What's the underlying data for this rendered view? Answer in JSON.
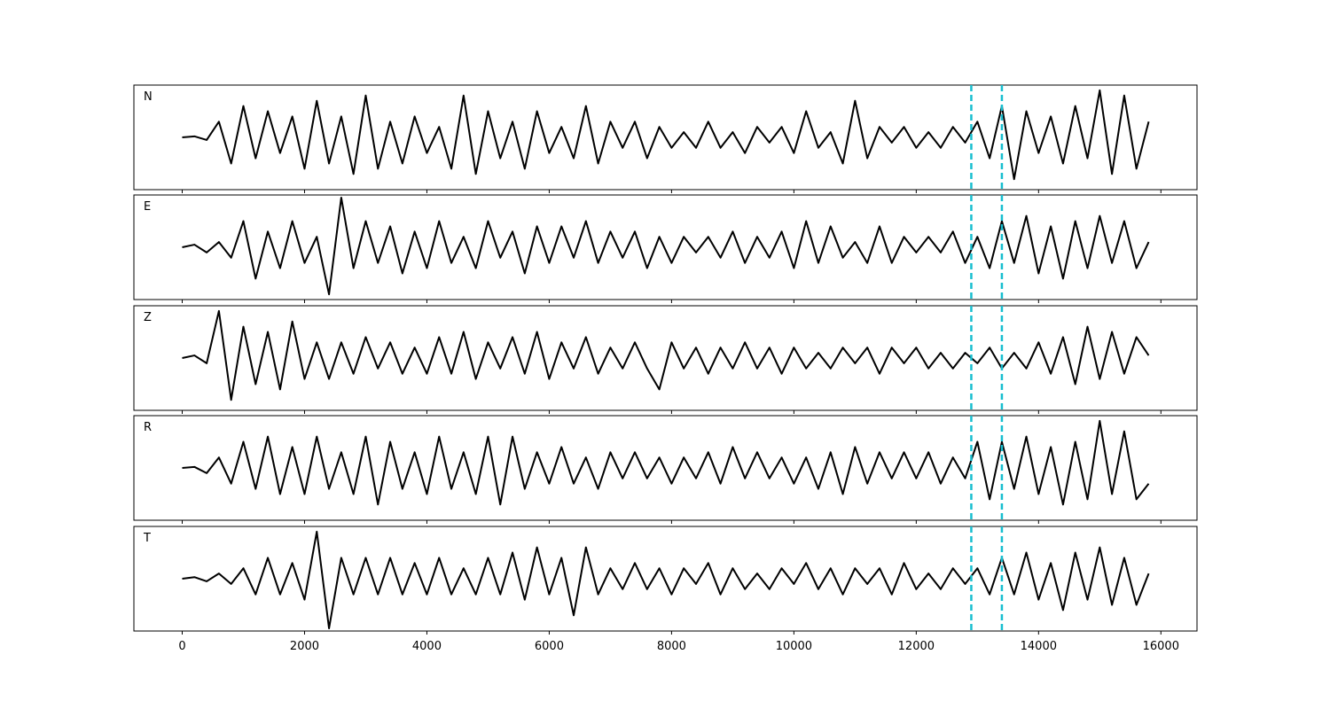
{
  "chart_data": {
    "type": "line",
    "x": [
      0,
      200,
      400,
      600,
      800,
      1000,
      1200,
      1400,
      1600,
      1800,
      2000,
      2200,
      2400,
      2600,
      2800,
      3000,
      3200,
      3400,
      3600,
      3800,
      4000,
      4200,
      4400,
      4600,
      4800,
      5000,
      5200,
      5400,
      5600,
      5800,
      6000,
      6200,
      6400,
      6600,
      6800,
      7000,
      7200,
      7400,
      7600,
      7800,
      8000,
      8200,
      8400,
      8600,
      8800,
      9000,
      9200,
      9400,
      9600,
      9800,
      10000,
      10200,
      10400,
      10600,
      10800,
      11000,
      11200,
      11400,
      11600,
      11800,
      12000,
      12200,
      12400,
      12600,
      12800,
      13000,
      13200,
      13400,
      13600,
      13800,
      14000,
      14200,
      14400,
      14600,
      14800,
      15000,
      15200,
      15400,
      15600,
      15800
    ],
    "series": [
      {
        "name": "N",
        "color": "#000000",
        "values": [
          0,
          0.02,
          -0.05,
          0.3,
          -0.5,
          0.6,
          -0.4,
          0.5,
          -0.3,
          0.4,
          -0.6,
          0.7,
          -0.5,
          0.4,
          -0.7,
          0.8,
          -0.6,
          0.3,
          -0.5,
          0.4,
          -0.3,
          0.2,
          -0.6,
          0.8,
          -0.7,
          0.5,
          -0.4,
          0.3,
          -0.6,
          0.5,
          -0.3,
          0.2,
          -0.4,
          0.6,
          -0.5,
          0.3,
          -0.2,
          0.3,
          -0.4,
          0.2,
          -0.2,
          0.1,
          -0.2,
          0.3,
          -0.2,
          0.1,
          -0.3,
          0.2,
          -0.1,
          0.2,
          -0.3,
          0.5,
          -0.2,
          0.1,
          -0.5,
          0.7,
          -0.4,
          0.2,
          -0.1,
          0.2,
          -0.2,
          0.1,
          -0.2,
          0.2,
          -0.1,
          0.3,
          -0.4,
          0.6,
          -0.8,
          0.5,
          -0.3,
          0.4,
          -0.5,
          0.6,
          -0.4,
          0.9,
          -0.7,
          0.8,
          -0.6,
          0.3
        ]
      },
      {
        "name": "E",
        "color": "#000000",
        "values": [
          0,
          0.05,
          -0.1,
          0.1,
          -0.2,
          0.5,
          -0.6,
          0.3,
          -0.4,
          0.5,
          -0.3,
          0.2,
          -0.9,
          0.95,
          -0.4,
          0.5,
          -0.3,
          0.4,
          -0.5,
          0.3,
          -0.4,
          0.5,
          -0.3,
          0.2,
          -0.4,
          0.5,
          -0.2,
          0.3,
          -0.5,
          0.4,
          -0.3,
          0.4,
          -0.2,
          0.5,
          -0.3,
          0.3,
          -0.2,
          0.3,
          -0.4,
          0.2,
          -0.3,
          0.2,
          -0.1,
          0.2,
          -0.2,
          0.3,
          -0.3,
          0.2,
          -0.2,
          0.3,
          -0.4,
          0.5,
          -0.3,
          0.4,
          -0.2,
          0.1,
          -0.3,
          0.4,
          -0.3,
          0.2,
          -0.1,
          0.2,
          -0.1,
          0.3,
          -0.3,
          0.2,
          -0.4,
          0.5,
          -0.3,
          0.6,
          -0.5,
          0.4,
          -0.6,
          0.5,
          -0.4,
          0.6,
          -0.3,
          0.5,
          -0.4,
          0.1
        ]
      },
      {
        "name": "Z",
        "color": "#000000",
        "values": [
          0,
          0.05,
          -0.1,
          0.9,
          -0.8,
          0.6,
          -0.5,
          0.5,
          -0.6,
          0.7,
          -0.4,
          0.3,
          -0.4,
          0.3,
          -0.3,
          0.4,
          -0.2,
          0.3,
          -0.3,
          0.2,
          -0.3,
          0.4,
          -0.3,
          0.5,
          -0.4,
          0.3,
          -0.2,
          0.4,
          -0.3,
          0.5,
          -0.4,
          0.3,
          -0.2,
          0.4,
          -0.3,
          0.2,
          -0.2,
          0.3,
          -0.2,
          -0.6,
          0.3,
          -0.2,
          0.2,
          -0.3,
          0.2,
          -0.2,
          0.3,
          -0.2,
          0.2,
          -0.3,
          0.2,
          -0.2,
          0.1,
          -0.2,
          0.2,
          -0.1,
          0.2,
          -0.3,
          0.2,
          -0.1,
          0.2,
          -0.2,
          0.1,
          -0.2,
          0.1,
          -0.1,
          0.2,
          -0.2,
          0.1,
          -0.2,
          0.3,
          -0.3,
          0.4,
          -0.5,
          0.6,
          -0.4,
          0.5,
          -0.3,
          0.4,
          0.05
        ]
      },
      {
        "name": "R",
        "color": "#000000",
        "values": [
          0,
          0.02,
          -0.1,
          0.2,
          -0.3,
          0.5,
          -0.4,
          0.6,
          -0.5,
          0.4,
          -0.5,
          0.6,
          -0.4,
          0.3,
          -0.5,
          0.6,
          -0.7,
          0.5,
          -0.4,
          0.3,
          -0.5,
          0.6,
          -0.4,
          0.3,
          -0.5,
          0.6,
          -0.7,
          0.6,
          -0.4,
          0.3,
          -0.3,
          0.4,
          -0.3,
          0.2,
          -0.4,
          0.3,
          -0.2,
          0.3,
          -0.2,
          0.2,
          -0.3,
          0.2,
          -0.2,
          0.3,
          -0.3,
          0.4,
          -0.2,
          0.3,
          -0.2,
          0.2,
          -0.3,
          0.2,
          -0.4,
          0.3,
          -0.5,
          0.4,
          -0.3,
          0.3,
          -0.2,
          0.3,
          -0.2,
          0.3,
          -0.3,
          0.2,
          -0.2,
          0.5,
          -0.6,
          0.5,
          -0.4,
          0.6,
          -0.5,
          0.4,
          -0.7,
          0.5,
          -0.6,
          0.9,
          -0.5,
          0.7,
          -0.6,
          -0.3
        ]
      },
      {
        "name": "T",
        "color": "#000000",
        "values": [
          0,
          0.03,
          -0.05,
          0.1,
          -0.1,
          0.2,
          -0.3,
          0.4,
          -0.3,
          0.3,
          -0.4,
          0.9,
          -0.95,
          0.4,
          -0.3,
          0.4,
          -0.3,
          0.4,
          -0.3,
          0.3,
          -0.3,
          0.4,
          -0.3,
          0.2,
          -0.3,
          0.4,
          -0.3,
          0.5,
          -0.4,
          0.6,
          -0.3,
          0.4,
          -0.7,
          0.6,
          -0.3,
          0.2,
          -0.2,
          0.3,
          -0.2,
          0.2,
          -0.3,
          0.2,
          -0.1,
          0.3,
          -0.3,
          0.2,
          -0.2,
          0.1,
          -0.2,
          0.2,
          -0.1,
          0.3,
          -0.2,
          0.2,
          -0.3,
          0.2,
          -0.1,
          0.2,
          -0.3,
          0.3,
          -0.2,
          0.1,
          -0.2,
          0.2,
          -0.1,
          0.2,
          -0.3,
          0.4,
          -0.3,
          0.5,
          -0.4,
          0.3,
          -0.6,
          0.5,
          -0.4,
          0.6,
          -0.5,
          0.4,
          -0.5,
          0.1
        ]
      }
    ],
    "xlim": [
      -790,
      16590
    ],
    "ylim": [
      -1,
      1
    ],
    "xticks": [
      0,
      2000,
      4000,
      6000,
      8000,
      10000,
      12000,
      14000,
      16000
    ],
    "vlines": [
      12900,
      13400
    ],
    "vline_color": "#17becf"
  }
}
